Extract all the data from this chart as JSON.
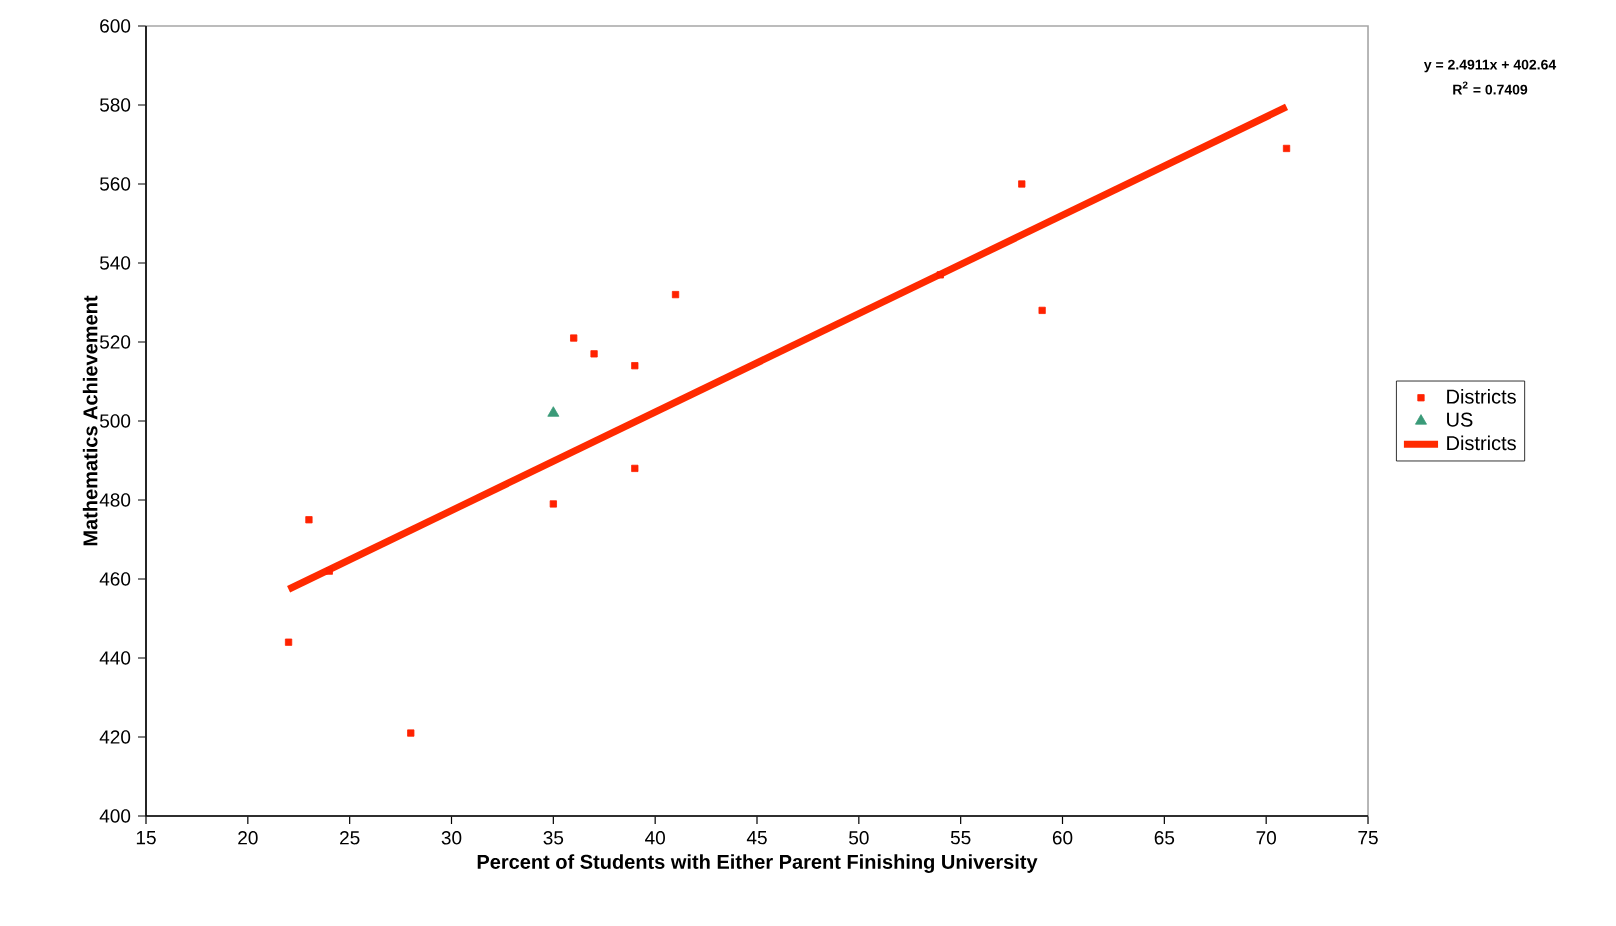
{
  "chart_data": {
    "type": "scatter",
    "xlabel": "Percent of Students with Either Parent Finishing University",
    "ylabel": "Mathematics Achievement",
    "annotations": [
      "y = 2.4911x + 402.64",
      "R$^{2}$ = 0.7409"
    ],
    "xlim": [
      15,
      75
    ],
    "xticks": [
      15,
      20,
      25,
      30,
      35,
      40,
      45,
      50,
      55,
      60,
      65,
      70,
      75
    ],
    "ylim": [
      400,
      600
    ],
    "yticks": [
      400,
      420,
      440,
      460,
      480,
      500,
      520,
      540,
      560,
      580,
      600
    ],
    "grid": false,
    "legend": "right",
    "series": [
      {
        "name": "Districts",
        "marker": "square",
        "color": "#ff2200",
        "x": [
          22,
          23,
          24,
          28,
          35,
          36,
          37,
          39,
          39,
          41,
          54,
          58,
          59,
          71
        ],
        "values": [
          444,
          475,
          462,
          421,
          479,
          521,
          517,
          514,
          488,
          532,
          537,
          560,
          528,
          569
        ]
      },
      {
        "name": "US",
        "marker": "triangle",
        "color": "#3a9a78",
        "x": [
          35
        ],
        "values": [
          502
        ]
      },
      {
        "name": "Districts",
        "type": "line",
        "marker": "none",
        "line_style": "solid",
        "color": "#ff2a00",
        "x": [
          22,
          71
        ],
        "values": [
          457.4,
          579.5
        ]
      }
    ]
  }
}
